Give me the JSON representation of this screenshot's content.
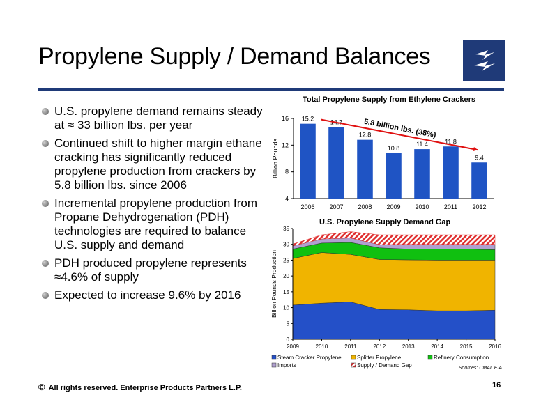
{
  "slide": {
    "title": "Propylene Supply / Demand Balances",
    "footer": "All rights reserved. Enterprise Products Partners L.P.",
    "page_number": "16",
    "copyright_symbol": "©"
  },
  "bullets": [
    "U.S. propylene demand remains steady at ≈ 33 billion lbs. per year",
    "Continued shift to higher margin ethane cracking has significantly reduced propylene production from crackers by 5.8 billion lbs. since 2006",
    "Incremental propylene production from Propane Dehydrogenation (PDH) technologies are required to balance U.S. supply and demand",
    "PDH produced propylene represents ≈4.6% of supply",
    "Expected to increase 9.6% by 2016"
  ],
  "colors": {
    "brand": "#1f3a78",
    "bar": "#1f54c4",
    "steam": "#2450c8",
    "splitter": "#f0b400",
    "refinery": "#10c010",
    "imports": "#b0a0d0",
    "gap": "#e03030"
  },
  "chart_data": [
    {
      "type": "bar",
      "title": "Total Propylene Supply from Ethylene Crackers",
      "annotation": "5.8 billion lbs. (38%)",
      "categories": [
        "2006",
        "2007",
        "2008",
        "2009",
        "2010",
        "2011",
        "2012"
      ],
      "values": [
        15.2,
        14.7,
        12.8,
        10.8,
        11.4,
        11.8,
        9.4
      ],
      "value_labels": [
        "15.2",
        "14.7",
        "12.8",
        "10.8",
        "11.4",
        "11.8",
        "9.4"
      ],
      "ylabel": "Billion Pounds",
      "ylim": [
        4,
        16
      ],
      "yticks": [
        4,
        8,
        12,
        16
      ],
      "ytick_labels": [
        "4",
        "8",
        "12",
        "16"
      ]
    },
    {
      "type": "area",
      "title": "U.S. Propylene Supply Demand Gap",
      "ylabel": "Billion Pounds Production",
      "x": [
        "2009",
        "2010",
        "2011",
        "2012",
        "2013",
        "2014",
        "2015",
        "2016"
      ],
      "ylim": [
        0,
        35
      ],
      "yticks": [
        0,
        5,
        10,
        15,
        20,
        25,
        30,
        35
      ],
      "ytick_labels": [
        "0",
        "5",
        "10",
        "15",
        "20",
        "25",
        "30",
        "35"
      ],
      "stacked": true,
      "series": [
        {
          "name": "Steam Cracker Propylene",
          "values": [
            10.8,
            11.4,
            11.8,
            9.4,
            9.3,
            9.0,
            9.0,
            9.2
          ]
        },
        {
          "name": "Splitter Propylene",
          "values": [
            14.7,
            16.0,
            15.0,
            15.8,
            15.8,
            16.0,
            16.0,
            15.8
          ]
        },
        {
          "name": "Refinery Consumption",
          "values": [
            3.0,
            3.0,
            3.8,
            3.7,
            3.4,
            3.5,
            3.5,
            3.3
          ]
        },
        {
          "name": "Imports",
          "values": [
            1.0,
            1.3,
            1.4,
            1.0,
            1.5,
            1.5,
            1.5,
            1.7
          ]
        },
        {
          "name": "Supply / Demand Gap",
          "values": [
            0.6,
            1.3,
            2.0,
            3.1,
            3.0,
            3.0,
            3.0,
            3.0
          ]
        }
      ],
      "legend_position": "bottom",
      "source": "Sources:  CMAI, EIA"
    }
  ]
}
